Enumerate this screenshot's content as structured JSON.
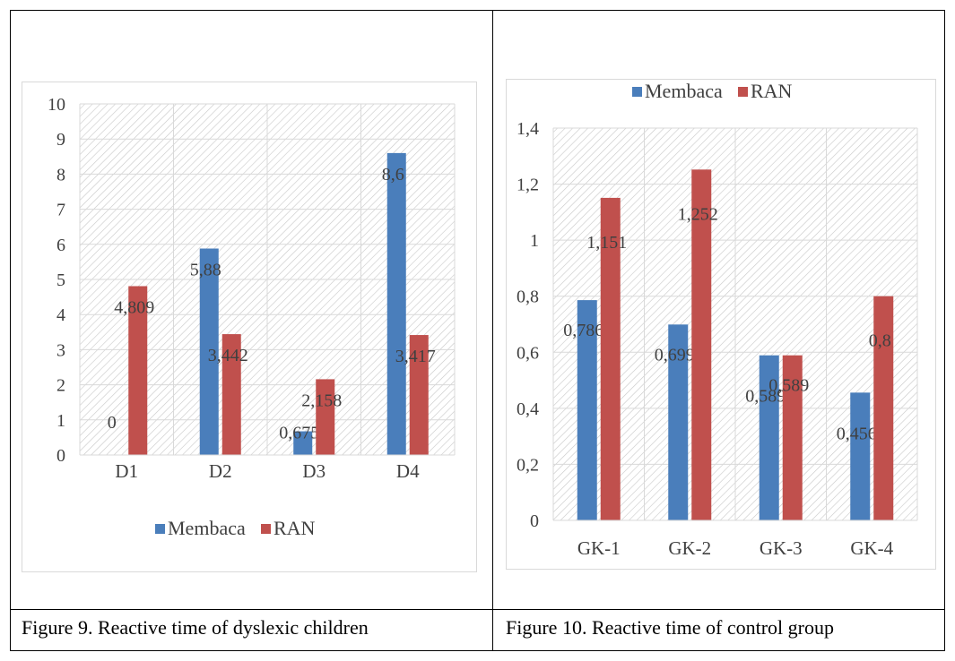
{
  "captions": {
    "left": "Figure 9. Reactive time of dyslexic children",
    "right": "Figure 10. Reactive time of control group"
  },
  "colors": {
    "membaca": "#4a7ebb",
    "ran": "#c0504d",
    "hatch": "#c8c8c8",
    "text": "#404040"
  },
  "chart_data": [
    {
      "type": "bar",
      "categories": [
        "D1",
        "D2",
        "D3",
        "D4"
      ],
      "series": [
        {
          "name": "Membaca",
          "values": [
            0,
            5.88,
            0.675,
            8.6
          ],
          "labels": [
            "0",
            "5,88",
            "0,675",
            "8,6"
          ]
        },
        {
          "name": "RAN",
          "values": [
            4.809,
            3.442,
            2.158,
            3.417
          ],
          "labels": [
            "4,809",
            "3,442",
            "2,158",
            "3,417"
          ]
        }
      ],
      "ylim": [
        0,
        10
      ],
      "yticks": [
        0,
        1,
        2,
        3,
        4,
        5,
        6,
        7,
        8,
        9,
        10
      ],
      "ytick_labels": [
        "0",
        "1",
        "2",
        "3",
        "4",
        "5",
        "6",
        "7",
        "8",
        "9",
        "10"
      ],
      "legend_position": "bottom",
      "grid": true
    },
    {
      "type": "bar",
      "categories": [
        "GK-1",
        "GK-2",
        "GK-3",
        "GK-4"
      ],
      "series": [
        {
          "name": "Membaca",
          "values": [
            0.786,
            0.699,
            0.589,
            0.456
          ],
          "labels": [
            "0,786",
            "0,699",
            "0,589",
            "0,456"
          ]
        },
        {
          "name": "RAN",
          "values": [
            1.151,
            1.252,
            0.589,
            0.8
          ],
          "labels": [
            "1,151",
            "1,252",
            "0,589",
            "0,8"
          ]
        }
      ],
      "ylim": [
        0,
        1.4
      ],
      "yticks": [
        0,
        0.2,
        0.4,
        0.6,
        0.8,
        1,
        1.2,
        1.4
      ],
      "ytick_labels": [
        "0",
        "0,2",
        "0,4",
        "0,6",
        "0,8",
        "1",
        "1,2",
        "1,4"
      ],
      "legend_position": "top",
      "grid": true
    }
  ]
}
